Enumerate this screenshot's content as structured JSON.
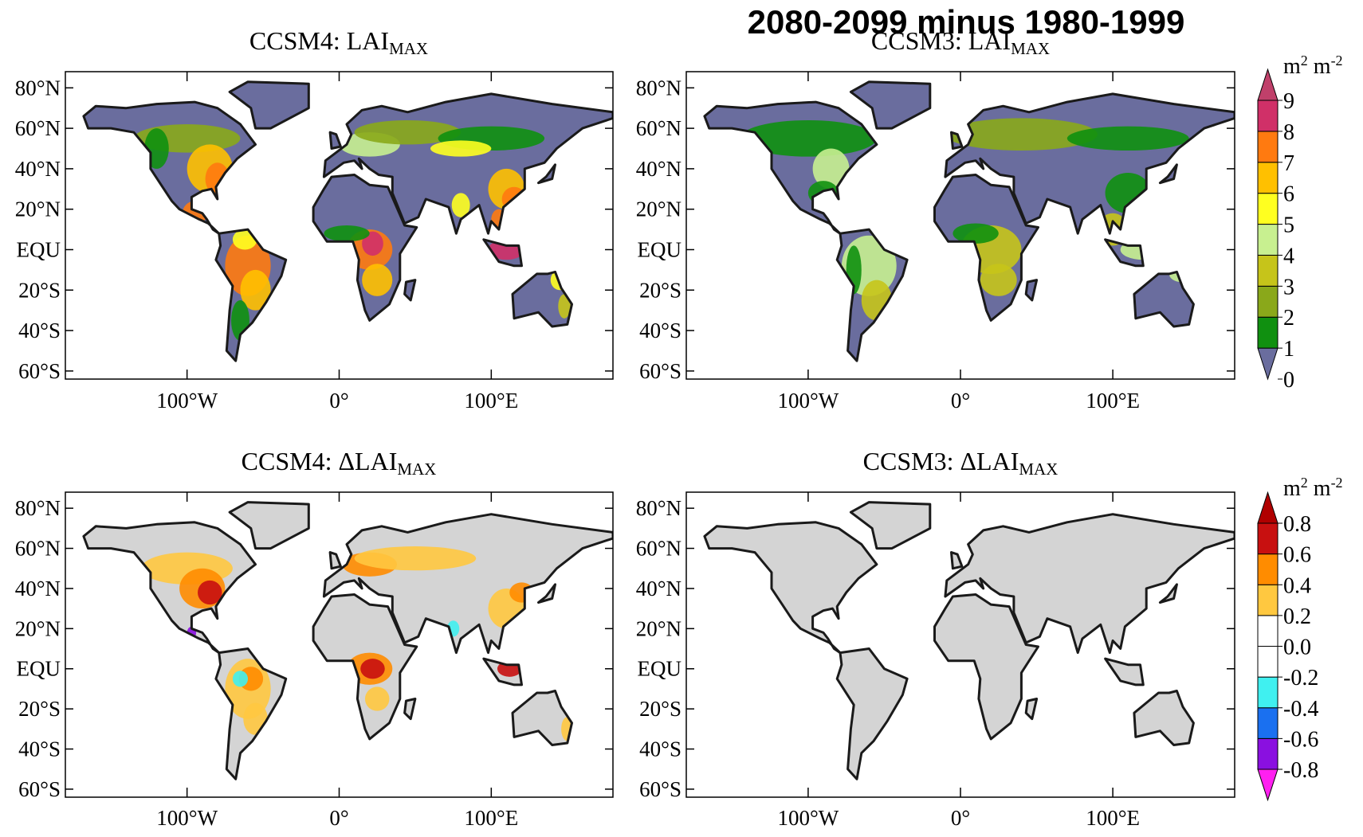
{
  "title": "2080-2099 minus 1980-1999",
  "map": {
    "xlim": [
      -180,
      180
    ],
    "ylim": [
      -64,
      88
    ],
    "lat_ticks": [
      {
        "value": 80,
        "label": "80°N"
      },
      {
        "value": 60,
        "label": "60°N"
      },
      {
        "value": 40,
        "label": "40°N"
      },
      {
        "value": 20,
        "label": "20°N"
      },
      {
        "value": 0,
        "label": "EQU"
      },
      {
        "value": -20,
        "label": "20°S"
      },
      {
        "value": -40,
        "label": "40°S"
      },
      {
        "value": -60,
        "label": "60°S"
      }
    ],
    "lon_ticks": [
      {
        "value": -100,
        "label": "100°W"
      },
      {
        "value": 0,
        "label": "0°"
      },
      {
        "value": 100,
        "label": "100°E"
      }
    ]
  },
  "panels": [
    {
      "title": "CCSM4: LAI",
      "title_sub": "MAX",
      "land_color": "#6a6d9e",
      "colorbar": 0
    },
    {
      "title": "CCSM3: LAI",
      "title_sub": "MAX",
      "land_color": "#6a6d9e",
      "colorbar": 0
    },
    {
      "title": "CCSM4: ΔLAI",
      "title_sub": "MAX",
      "land_color": "#d4d4d4",
      "colorbar": 1
    },
    {
      "title": "CCSM3: ΔLAI",
      "title_sub": "MAX",
      "land_color": "#d4d4d4",
      "colorbar": 1
    }
  ],
  "colorbars": [
    {
      "unit": [
        "m",
        "2",
        " m",
        "-2"
      ],
      "ticks": [
        0,
        1,
        2,
        3,
        4,
        5,
        6,
        7,
        8,
        9
      ],
      "colors": [
        "#6a6d9e",
        "#109010",
        "#8aa81a",
        "#c6c41a",
        "#c8f090",
        "#ffff20",
        "#ffc000",
        "#ff7a10",
        "#d03068"
      ],
      "first_segment_triangle": true,
      "above_color": "#c0406a"
    },
    {
      "unit": [
        "m",
        "2",
        " m",
        "-2"
      ],
      "ticks": [
        -0.8,
        -0.6,
        -0.4,
        -0.2,
        {
          "value": 0,
          "label": "0.0"
        },
        0.2,
        0.4,
        0.6,
        0.8
      ],
      "colors": [
        "#8a10e0",
        "#1a70f0",
        "#40f0f0",
        "#ffffff",
        "#ffffff",
        "#ffc840",
        "#ff8c00",
        "#c81010"
      ],
      "below_color": "#ff20f0",
      "above_color": "#b00000"
    }
  ]
}
